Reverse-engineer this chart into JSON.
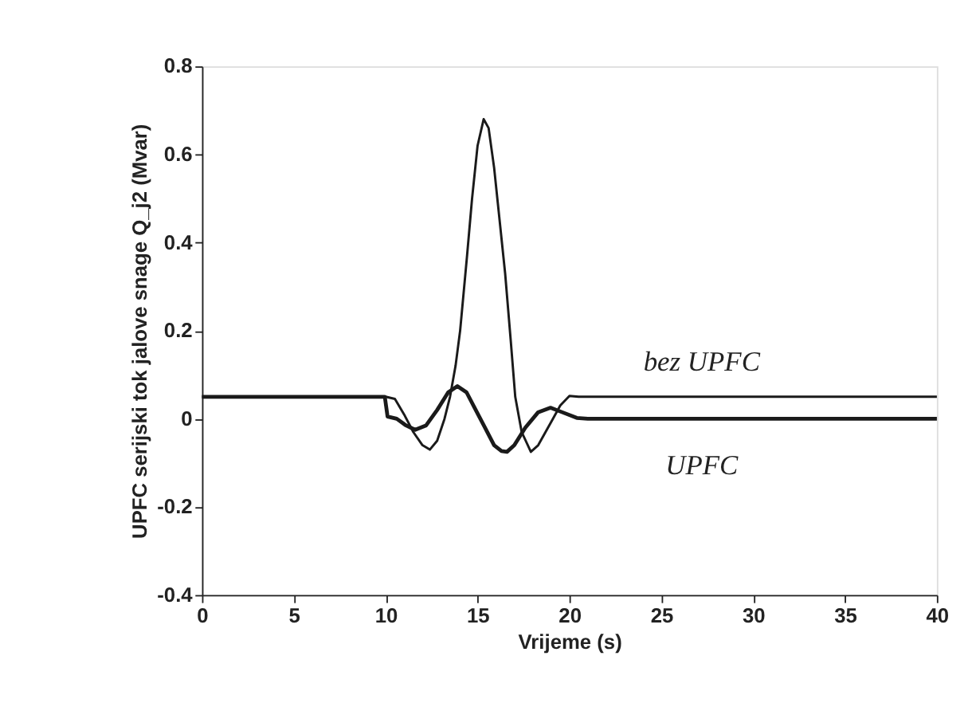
{
  "chart_data": {
    "type": "line",
    "xlabel": "Vrijeme (s)",
    "ylabel": "UPFC serijski tok jalove snage Q_j2 (Mvar)",
    "xlim": [
      0,
      40
    ],
    "xticks": [
      0,
      5,
      10,
      15,
      20,
      25,
      30,
      35,
      40
    ],
    "ylim": [
      -0.4,
      0.8
    ],
    "yticks": [
      -0.4,
      -0.2,
      0,
      0.2,
      0.4,
      0.6,
      0.8
    ],
    "grid": false,
    "marker": "none",
    "line_style": "solid",
    "series": [
      {
        "name": "bez UPFC",
        "color": "#1a1a1a",
        "x": [
          0,
          5,
          10,
          10.5,
          11,
          11.5,
          12,
          12.4,
          12.8,
          13.2,
          13.5,
          13.8,
          14.05,
          14.42,
          14.7,
          15.0,
          15.33,
          15.6,
          15.9,
          16.2,
          16.5,
          16.8,
          17.05,
          17.4,
          17.9,
          18.3,
          18.7,
          19.1,
          19.5,
          20,
          20.5,
          25,
          30,
          35,
          40
        ],
        "values": [
          0.05,
          0.05,
          0.05,
          0.045,
          0.01,
          -0.03,
          -0.06,
          -0.07,
          -0.05,
          0.0,
          0.05,
          0.12,
          0.2,
          0.367,
          0.5,
          0.62,
          0.68,
          0.66,
          0.57,
          0.45,
          0.33,
          0.18,
          0.05,
          -0.03,
          -0.075,
          -0.06,
          -0.03,
          0.0,
          0.03,
          0.052,
          0.05,
          0.05,
          0.05,
          0.05,
          0.05
        ]
      },
      {
        "name": "UPFC",
        "color": "#1a1a1a",
        "x": [
          0,
          5,
          9.95,
          10.1,
          10.6,
          11.1,
          11.6,
          12.2,
          12.8,
          13.4,
          13.9,
          14.4,
          14.9,
          15.4,
          15.9,
          16.3,
          16.6,
          17.0,
          17.6,
          18.3,
          18.97,
          19.6,
          20.4,
          21,
          25,
          30,
          35,
          40
        ],
        "values": [
          0.05,
          0.05,
          0.05,
          0.005,
          0.0,
          -0.015,
          -0.025,
          -0.015,
          0.02,
          0.06,
          0.074,
          0.06,
          0.02,
          -0.02,
          -0.06,
          -0.073,
          -0.075,
          -0.06,
          -0.02,
          0.015,
          0.025,
          0.015,
          0.002,
          0.0,
          0.0,
          0.0,
          0.0,
          0.0
        ]
      }
    ]
  }
}
